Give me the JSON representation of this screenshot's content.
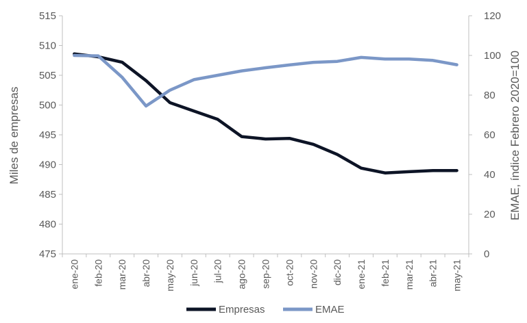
{
  "chart_data": {
    "type": "line",
    "title": "",
    "categories": [
      "ene-20",
      "feb-20",
      "mar-20",
      "abr-20",
      "may-20",
      "jun-20",
      "jul-20",
      "ago-20",
      "sep-20",
      "oct-20",
      "nov-20",
      "dic-20",
      "ene-21",
      "feb-21",
      "mar-21",
      "abr-21",
      "may-21"
    ],
    "y_left": {
      "label": "Miles de empresas",
      "min": 475,
      "max": 515,
      "step": 5,
      "ticks": [
        "515",
        "510",
        "505",
        "500",
        "495",
        "490",
        "485",
        "480",
        "475"
      ]
    },
    "y_right": {
      "label": "EMAE, índice Febrero 2020=100",
      "min": 0,
      "max": 120,
      "step": 20,
      "ticks": [
        "120",
        "100",
        "80",
        "60",
        "40",
        "20",
        "0"
      ]
    },
    "series": [
      {
        "name": "Empresas",
        "axis": "left",
        "color": "#0d1426",
        "values": [
          508.6,
          508.1,
          507.2,
          504.1,
          500.4,
          499.0,
          497.6,
          494.7,
          494.3,
          494.4,
          493.4,
          491.7,
          489.4,
          488.6,
          488.8,
          489.0,
          489.0
        ]
      },
      {
        "name": "EMAE",
        "axis": "right",
        "color": "#7b97c7",
        "values": [
          100.0,
          99.8,
          89.0,
          74.5,
          82.5,
          87.8,
          90.0,
          92.2,
          93.8,
          95.2,
          96.5,
          97.0,
          99.0,
          98.2,
          98.2,
          97.5,
          95.3
        ]
      }
    ],
    "grid": false,
    "legend_position": "bottom"
  }
}
